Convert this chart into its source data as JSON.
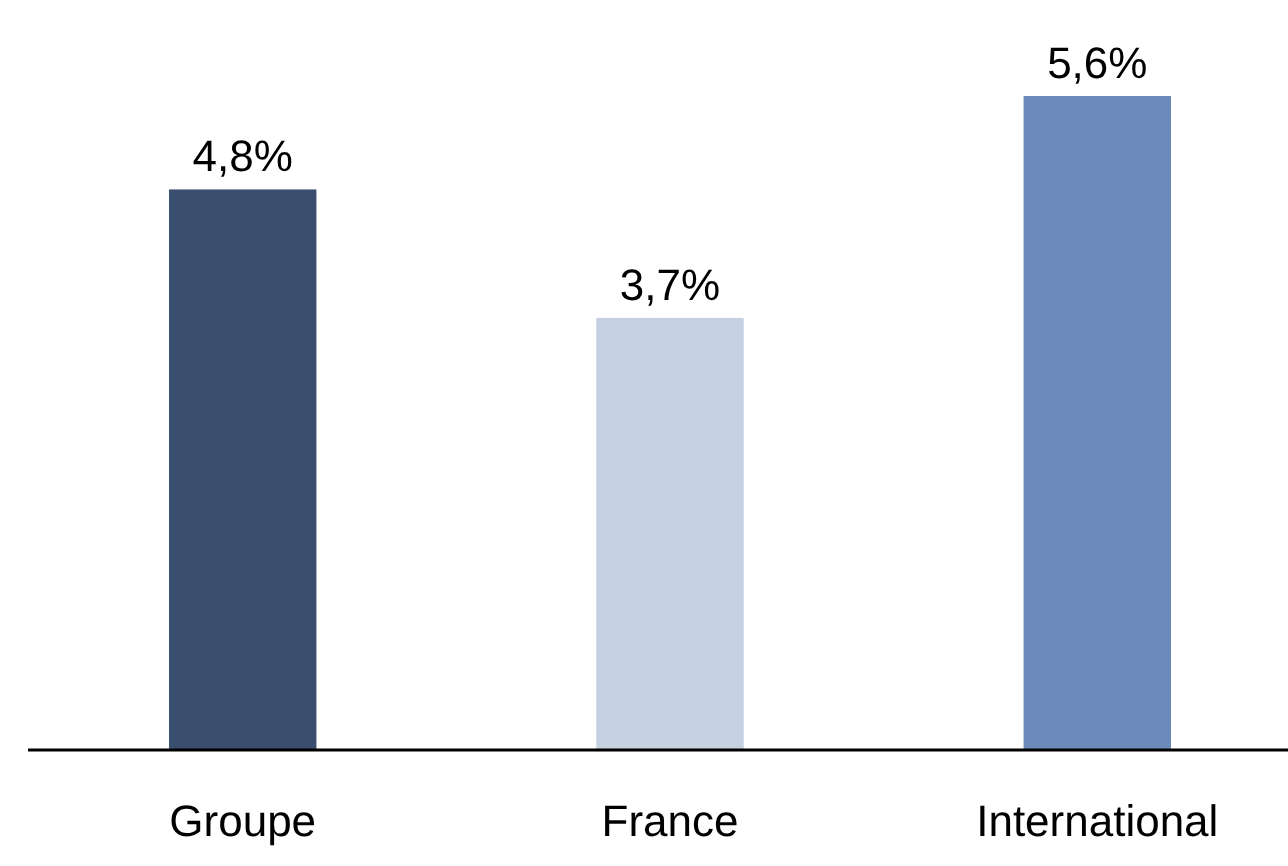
{
  "chart_data": {
    "type": "bar",
    "categories": [
      "Groupe",
      "France",
      "International"
    ],
    "values": [
      4.8,
      3.7,
      5.6
    ],
    "colors": [
      "#3a4e6e",
      "#c5d0e0",
      "#6b8cbb"
    ],
    "value_labels": [
      "4,8%",
      "3,7%",
      "5,6%"
    ]
  }
}
